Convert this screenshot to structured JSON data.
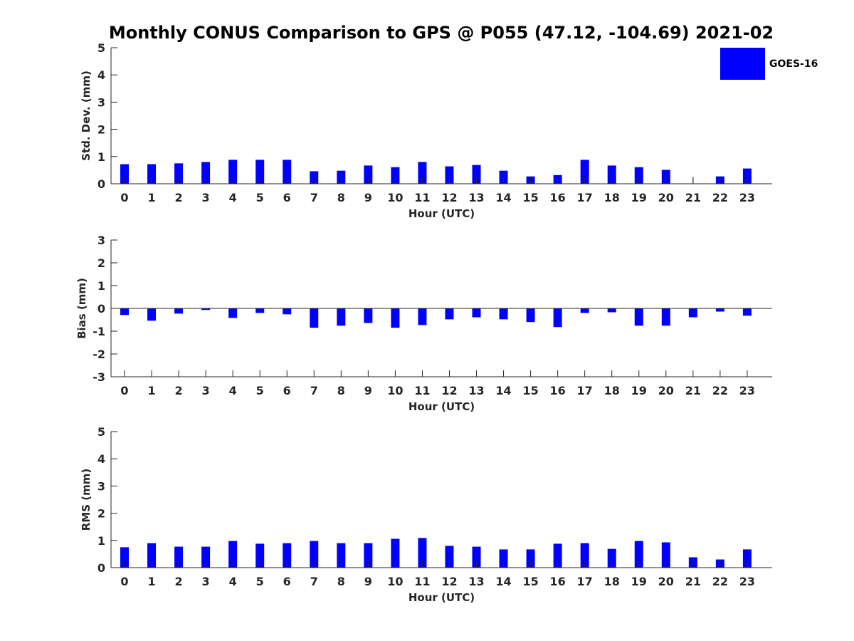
{
  "chart_data": {
    "type": "bar",
    "title": "Monthly CONUS Comparison to GPS @ P055 (47.12, -104.69) 2021-02",
    "legend": {
      "entries": [
        "GOES-16"
      ],
      "placement": "top-right",
      "color": "#0000ff"
    },
    "categories": [
      "0",
      "1",
      "2",
      "3",
      "4",
      "5",
      "6",
      "7",
      "8",
      "9",
      "10",
      "11",
      "12",
      "13",
      "14",
      "15",
      "16",
      "17",
      "18",
      "19",
      "20",
      "21",
      "22",
      "23"
    ],
    "panels": [
      {
        "name": "std-dev",
        "xlabel": "Hour (UTC)",
        "ylabel": "Std. Dev. (mm)",
        "ylim": [
          0,
          5
        ],
        "yticks": [
          "0",
          "1",
          "2",
          "3",
          "4",
          "5"
        ],
        "series": [
          {
            "name": "GOES-16",
            "values": [
              0.72,
              0.72,
              0.75,
              0.8,
              0.88,
              0.88,
              0.88,
              0.46,
              0.48,
              0.67,
              0.61,
              0.8,
              0.64,
              0.69,
              0.48,
              0.27,
              0.32,
              0.88,
              0.67,
              0.61,
              0.51,
              0.25,
              0.27,
              0.56
            ]
          }
        ]
      },
      {
        "name": "bias",
        "xlabel": "Hour (UTC)",
        "ylabel": "Bias (mm)",
        "ylim": [
          -3,
          3
        ],
        "yticks": [
          "-3",
          "-2",
          "-1",
          "0",
          "1",
          "2",
          "3"
        ],
        "series": [
          {
            "name": "GOES-16",
            "values": [
              -0.29,
              -0.54,
              -0.23,
              -0.07,
              -0.42,
              -0.2,
              -0.26,
              -0.85,
              -0.76,
              -0.64,
              -0.85,
              -0.73,
              -0.48,
              -0.39,
              -0.48,
              -0.6,
              -0.82,
              -0.2,
              -0.17,
              -0.76,
              -0.76,
              -0.39,
              -0.14,
              -0.32
            ]
          }
        ]
      },
      {
        "name": "rms",
        "xlabel": "Hour (UTC)",
        "ylabel": "RMS (mm)",
        "ylim": [
          0,
          5
        ],
        "yticks": [
          "0",
          "1",
          "2",
          "3",
          "4",
          "5"
        ],
        "series": [
          {
            "name": "GOES-16",
            "values": [
              0.75,
              0.9,
              0.77,
              0.77,
              0.98,
              0.88,
              0.9,
              0.98,
              0.9,
              0.9,
              1.06,
              1.09,
              0.8,
              0.77,
              0.67,
              0.67,
              0.88,
              0.9,
              0.69,
              0.98,
              0.93,
              0.38,
              0.3,
              0.67
            ]
          }
        ]
      }
    ]
  }
}
